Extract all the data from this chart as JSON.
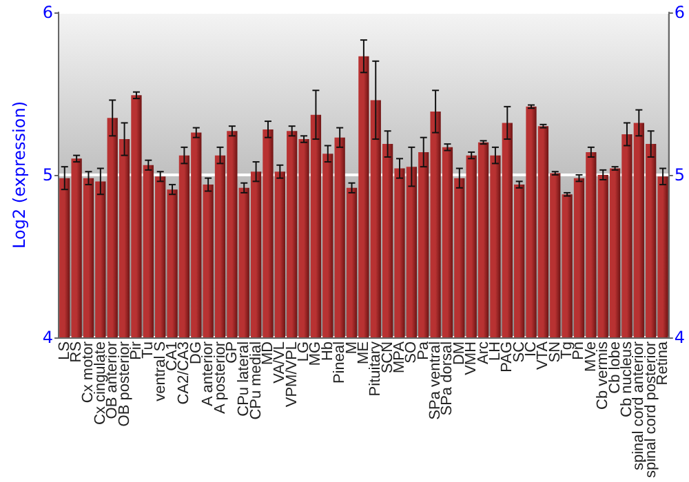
{
  "chart_data": {
    "type": "bar",
    "ylabel": "Log2 (expression)",
    "categories": [
      "LS",
      "RS",
      "Cx motor",
      "Cx cingulate",
      "OB anterior",
      "OB posterior",
      "Pir",
      "Tu",
      "ventral S",
      "CA1",
      "CA2/CA3",
      "DG",
      "A anterior",
      "A posterior",
      "GP",
      "CPu lateral",
      "CPu medial",
      "MD",
      "VA/VL",
      "VPM/VPL",
      "LG",
      "MG",
      "Hb",
      "Pineal",
      "M",
      "ME",
      "Pituitary",
      "SCN",
      "MPA",
      "SO",
      "Pa",
      "SPa ventral",
      "SPa dorsal",
      "DM",
      "VMH",
      "Arc",
      "LH",
      "PAG",
      "SC",
      "IC",
      "VTA",
      "SN",
      "Tg",
      "Pn",
      "MVe",
      "Cb vermis",
      "Cb lobe",
      "Cb nucleus",
      "spinal cord anterior",
      "spinal cord posterior",
      "Retina"
    ],
    "values": [
      4.98,
      5.1,
      4.98,
      4.96,
      5.35,
      5.22,
      5.49,
      5.06,
      4.99,
      4.91,
      5.12,
      5.26,
      4.94,
      5.12,
      5.27,
      4.92,
      5.02,
      5.28,
      5.02,
      5.27,
      5.22,
      5.37,
      5.13,
      5.23,
      4.92,
      5.73,
      5.46,
      5.19,
      5.04,
      5.05,
      5.14,
      5.39,
      5.17,
      4.98,
      5.12,
      5.2,
      5.12,
      5.32,
      4.94,
      5.42,
      5.3,
      5.01,
      4.88,
      4.98,
      5.14,
      5.0,
      5.04,
      5.25,
      5.32,
      5.19,
      4.99
    ],
    "errors": [
      0.07,
      0.02,
      0.04,
      0.08,
      0.11,
      0.1,
      0.02,
      0.03,
      0.03,
      0.03,
      0.05,
      0.03,
      0.04,
      0.05,
      0.03,
      0.03,
      0.06,
      0.05,
      0.04,
      0.03,
      0.02,
      0.15,
      0.05,
      0.06,
      0.03,
      0.1,
      0.24,
      0.08,
      0.06,
      0.12,
      0.09,
      0.13,
      0.02,
      0.06,
      0.02,
      0.01,
      0.05,
      0.1,
      0.02,
      0.01,
      0.01,
      0.01,
      0.01,
      0.02,
      0.03,
      0.03,
      0.01,
      0.07,
      0.08,
      0.08,
      0.05
    ],
    "color": "#b83232",
    "ylim": [
      4,
      6
    ],
    "yticks": [
      4,
      5,
      6
    ],
    "y2lim": [
      4,
      6
    ],
    "y2ticks": [
      4,
      5,
      6
    ],
    "grid": "y"
  }
}
